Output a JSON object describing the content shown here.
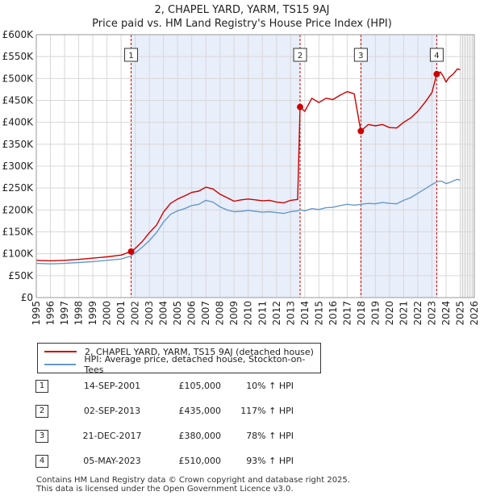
{
  "title_line1": "2, CHAPEL YARD, YARM, TS15 9AJ",
  "title_line2": "Price paid vs. HM Land Registry's House Price Index (HPI)",
  "chart_data": {
    "type": "line",
    "title": "2, CHAPEL YARD, YARM, TS15 9AJ",
    "subtitle": "Price paid vs. HM Land Registry's House Price Index (HPI)",
    "xlabel": "",
    "ylabel": "",
    "xlim": [
      1995,
      2026
    ],
    "ylim": [
      0,
      600000
    ],
    "y_ticks": [
      0,
      50000,
      100000,
      150000,
      200000,
      250000,
      300000,
      350000,
      400000,
      450000,
      500000,
      550000,
      600000
    ],
    "y_tick_labels": [
      "£0",
      "£50K",
      "£100K",
      "£150K",
      "£200K",
      "£250K",
      "£300K",
      "£350K",
      "£400K",
      "£450K",
      "£500K",
      "£550K",
      "£600K"
    ],
    "x_ticks": [
      1995,
      1996,
      1997,
      1998,
      1999,
      2000,
      2001,
      2002,
      2003,
      2004,
      2005,
      2006,
      2007,
      2008,
      2009,
      2010,
      2011,
      2012,
      2013,
      2014,
      2015,
      2016,
      2017,
      2018,
      2019,
      2020,
      2021,
      2022,
      2023,
      2024,
      2025,
      2026
    ],
    "x_tick_labels": [
      "1995",
      "1996",
      "1997",
      "1998",
      "1999",
      "2000",
      "2001",
      "2002",
      "2003",
      "2004",
      "2005",
      "2006",
      "2007",
      "2008",
      "2009",
      "2010",
      "2011",
      "2012",
      "2013",
      "2014",
      "2015",
      "2016",
      "2017",
      "2018",
      "2019",
      "2020",
      "2021",
      "2022",
      "2023",
      "2024",
      "2025",
      "2026"
    ],
    "grid": true,
    "projection_start": 2025.0,
    "series": [
      {
        "name": "2, CHAPEL YARD, YARM, TS15 9AJ (detached house)",
        "color": "#cc0000",
        "x": [
          1995.0,
          1996.0,
          1997.0,
          1998.0,
          1999.0,
          2000.0,
          2001.0,
          2001.7,
          2002.0,
          2002.5,
          2003.0,
          2003.5,
          2004.0,
          2004.5,
          2005.0,
          2005.5,
          2006.0,
          2006.5,
          2007.0,
          2007.5,
          2008.0,
          2008.5,
          2009.0,
          2009.5,
          2010.0,
          2010.5,
          2011.0,
          2011.5,
          2012.0,
          2012.5,
          2013.0,
          2013.5,
          2013.67,
          2014.0,
          2014.5,
          2015.0,
          2015.5,
          2016.0,
          2016.5,
          2017.0,
          2017.5,
          2017.97,
          2018.5,
          2019.0,
          2019.5,
          2020.0,
          2020.5,
          2021.0,
          2021.5,
          2022.0,
          2022.5,
          2023.0,
          2023.34,
          2023.6,
          2023.8,
          2024.0,
          2024.2,
          2024.5,
          2024.8,
          2025.0
        ],
        "values": [
          85000,
          84000,
          85000,
          87000,
          90000,
          93000,
          97000,
          105000,
          112000,
          128000,
          148000,
          165000,
          195000,
          215000,
          225000,
          232000,
          240000,
          243000,
          252000,
          248000,
          236000,
          228000,
          220000,
          223000,
          225000,
          223000,
          221000,
          222000,
          218000,
          216000,
          222000,
          224000,
          435000,
          425000,
          455000,
          445000,
          455000,
          452000,
          462000,
          470000,
          465000,
          380000,
          395000,
          392000,
          395000,
          388000,
          387000,
          400000,
          410000,
          425000,
          445000,
          468000,
          510000,
          515000,
          505000,
          492000,
          502000,
          510000,
          522000,
          520000
        ]
      },
      {
        "name": "HPI: Average price, detached house, Stockton-on-Tees",
        "color": "#6699cc",
        "x": [
          1995.0,
          1996.0,
          1997.0,
          1998.0,
          1999.0,
          2000.0,
          2001.0,
          2001.7,
          2002.0,
          2002.5,
          2003.0,
          2003.5,
          2004.0,
          2004.5,
          2005.0,
          2005.5,
          2006.0,
          2006.5,
          2007.0,
          2007.5,
          2008.0,
          2008.5,
          2009.0,
          2009.5,
          2010.0,
          2010.5,
          2011.0,
          2011.5,
          2012.0,
          2012.5,
          2013.0,
          2013.5,
          2013.67,
          2014.0,
          2014.5,
          2015.0,
          2015.5,
          2016.0,
          2016.5,
          2017.0,
          2017.5,
          2017.97,
          2018.5,
          2019.0,
          2019.5,
          2020.0,
          2020.5,
          2021.0,
          2021.5,
          2022.0,
          2022.5,
          2023.0,
          2023.34,
          2023.6,
          2023.8,
          2024.0,
          2024.2,
          2024.5,
          2024.8,
          2025.0
        ],
        "values": [
          78000,
          77000,
          78000,
          80000,
          82000,
          85000,
          88000,
          95000,
          102000,
          115000,
          130000,
          148000,
          172000,
          190000,
          198000,
          203000,
          210000,
          213000,
          222000,
          218000,
          207000,
          200000,
          196000,
          197000,
          199000,
          197000,
          195000,
          196000,
          194000,
          192000,
          196000,
          198000,
          200000,
          198000,
          203000,
          201000,
          205000,
          206000,
          210000,
          213000,
          211000,
          213000,
          215000,
          214000,
          217000,
          215000,
          214000,
          222000,
          228000,
          238000,
          248000,
          258000,
          264000,
          266000,
          264000,
          260000,
          262000,
          266000,
          270000,
          268000
        ]
      }
    ],
    "sales": [
      {
        "num": "1",
        "x": 2001.71,
        "value": 105000
      },
      {
        "num": "2",
        "x": 2013.67,
        "value": 435000
      },
      {
        "num": "3",
        "x": 2017.97,
        "value": 380000
      },
      {
        "num": "4",
        "x": 2023.34,
        "value": 510000
      }
    ],
    "shaded_spans": [
      [
        2001.71,
        2013.67
      ],
      [
        2017.97,
        2023.34
      ]
    ]
  },
  "legend": {
    "property_label": "2, CHAPEL YARD, YARM, TS15 9AJ (detached house)",
    "hpi_label": "HPI: Average price, detached house, Stockton-on-Tees",
    "property_color": "#cc0000",
    "hpi_color": "#6699cc"
  },
  "sales_table": [
    {
      "num": "1",
      "date": "14-SEP-2001",
      "price": "£105,000",
      "hpi": "10% ↑ HPI"
    },
    {
      "num": "2",
      "date": "02-SEP-2013",
      "price": "£435,000",
      "hpi": "117% ↑ HPI"
    },
    {
      "num": "3",
      "date": "21-DEC-2017",
      "price": "£380,000",
      "hpi": "78% ↑ HPI"
    },
    {
      "num": "4",
      "date": "05-MAY-2023",
      "price": "£510,000",
      "hpi": "93% ↑ HPI"
    }
  ],
  "footer": {
    "line1": "Contains HM Land Registry data © Crown copyright and database right 2025.",
    "line2": "This data is licensed under the Open Government Licence v3.0."
  }
}
